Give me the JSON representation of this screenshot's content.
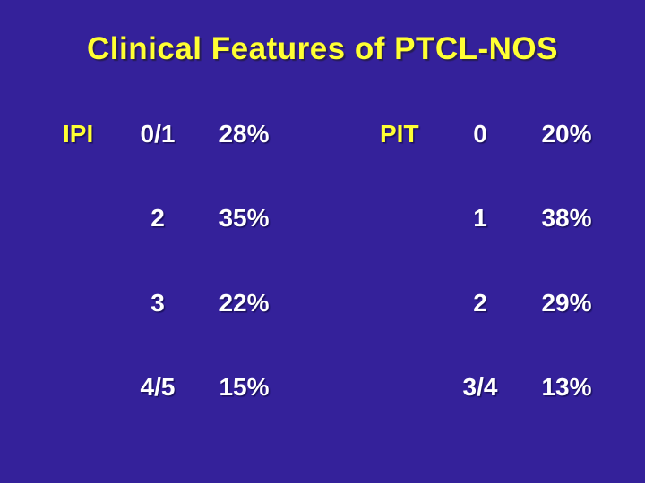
{
  "title": "Clinical Features of PTCL-NOS",
  "colors": {
    "background": "#34219A",
    "title": "#FFFF33",
    "label": "#FFFF33",
    "text": "#FFFFFF"
  },
  "ipi": {
    "label": "IPI",
    "rows": [
      {
        "group": "0/1",
        "value": "28%"
      },
      {
        "group": "2",
        "value": "35%"
      },
      {
        "group": "3",
        "value": "22%"
      },
      {
        "group": "4/5",
        "value": "15%"
      }
    ]
  },
  "pit": {
    "label": "PIT",
    "rows": [
      {
        "group": "0",
        "value": "20%"
      },
      {
        "group": "1",
        "value": "38%"
      },
      {
        "group": "2",
        "value": "29%"
      },
      {
        "group": "3/4",
        "value": "13%"
      }
    ]
  }
}
